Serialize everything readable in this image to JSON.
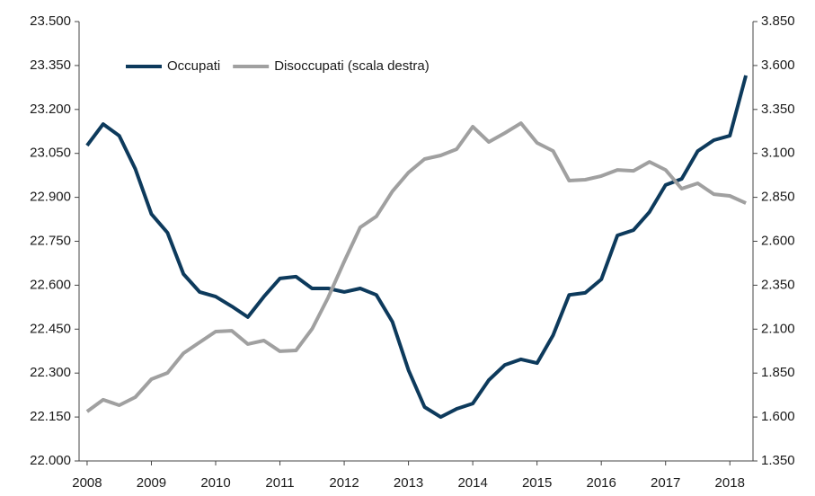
{
  "chart_data": {
    "type": "line",
    "x": [
      2008,
      2008.25,
      2008.5,
      2008.75,
      2009,
      2009.25,
      2009.5,
      2009.75,
      2010,
      2010.25,
      2010.5,
      2010.75,
      2011,
      2011.25,
      2011.5,
      2011.75,
      2012,
      2012.25,
      2012.5,
      2012.75,
      2013,
      2013.25,
      2013.5,
      2013.75,
      2014,
      2014.25,
      2014.5,
      2014.75,
      2015,
      2015.25,
      2015.5,
      2015.75,
      2016,
      2016.25,
      2016.5,
      2016.75,
      2017,
      2017.25,
      2017.5,
      2017.75,
      2018,
      2018.25
    ],
    "series": [
      {
        "name": "Occupati",
        "color": "#0d3a5c",
        "axis": "y",
        "values": [
          23077,
          23150,
          23110,
          22997,
          22843,
          22779,
          22638,
          22577,
          22561,
          22528,
          22491,
          22561,
          22623,
          22629,
          22589,
          22589,
          22577,
          22589,
          22567,
          22475,
          22310,
          22184,
          22150,
          22178,
          22196,
          22276,
          22328,
          22347,
          22334,
          22429,
          22567,
          22574,
          22620,
          22770,
          22788,
          22850,
          22942,
          22963,
          23058,
          23095,
          23110,
          23316
        ]
      },
      {
        "name": "Disoccupati (scala destra)",
        "color": "#a0a0a0",
        "axis": "y2",
        "values": [
          1631,
          1698,
          1667,
          1713,
          1815,
          1851,
          1963,
          2025,
          2086,
          2091,
          2015,
          2035,
          1974,
          1979,
          2101,
          2280,
          2485,
          2679,
          2741,
          2884,
          2991,
          3068,
          3088,
          3124,
          3252,
          3165,
          3216,
          3272,
          3160,
          3114,
          2945,
          2950,
          2971,
          3006,
          3001,
          3052,
          3006,
          2899,
          2930,
          2868,
          2858,
          2817
        ]
      }
    ],
    "xlim": [
      2007.875,
      2018.36
    ],
    "xticks": [
      2008,
      2009,
      2010,
      2011,
      2012,
      2013,
      2014,
      2015,
      2016,
      2017,
      2018
    ],
    "ylim": [
      22000,
      23500
    ],
    "yticks": [
      {
        "value": 22000,
        "label": "22.000"
      },
      {
        "value": 22150,
        "label": "22.150"
      },
      {
        "value": 22300,
        "label": "22.300"
      },
      {
        "value": 22450,
        "label": "22.450"
      },
      {
        "value": 22600,
        "label": "22.600"
      },
      {
        "value": 22750,
        "label": "22.750"
      },
      {
        "value": 22900,
        "label": "22.900"
      },
      {
        "value": 23050,
        "label": "23.050"
      },
      {
        "value": 23200,
        "label": "23.200"
      },
      {
        "value": 23350,
        "label": "23.350"
      },
      {
        "value": 23500,
        "label": "23.500"
      }
    ],
    "y2lim": [
      1350,
      3850
    ],
    "y2ticks": [
      {
        "value": 1350,
        "label": "1.350"
      },
      {
        "value": 1600,
        "label": "1.600"
      },
      {
        "value": 1850,
        "label": "1.850"
      },
      {
        "value": 2100,
        "label": "2.100"
      },
      {
        "value": 2350,
        "label": "2.350"
      },
      {
        "value": 2600,
        "label": "2.600"
      },
      {
        "value": 2850,
        "label": "2.850"
      },
      {
        "value": 3100,
        "label": "3.100"
      },
      {
        "value": 3350,
        "label": "3.350"
      },
      {
        "value": 3600,
        "label": "3.600"
      },
      {
        "value": 3850,
        "label": "3.850"
      }
    ],
    "grid": false
  }
}
